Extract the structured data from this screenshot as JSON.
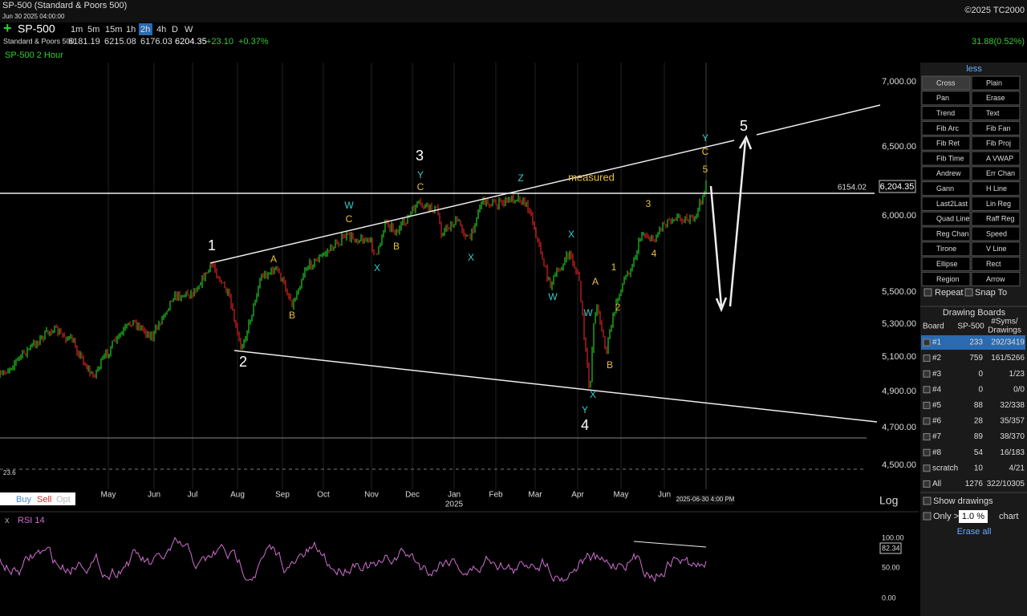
{
  "header": {
    "title": "SP-500 (Standard & Poors 500)",
    "date": "Jun 30 2025 04:00:00",
    "copyright": "©2025 TC2000"
  },
  "toolbar": {
    "symbol": "SP-500",
    "timeframes": [
      "1m",
      "5m",
      "15m",
      "1h",
      "2h",
      "4h",
      "D",
      "W"
    ],
    "name": "Standard & Poors 500",
    "open": "6181.19",
    "high": "6215.08",
    "low": "6176.03",
    "last": "6204.35",
    "change": "+23.10",
    "change_pct": "+0.37%",
    "day_change": "31.88(0.52%)"
  },
  "chart": {
    "label": "SP-500 2 Hour",
    "price_axis": [
      "7,000.00",
      "6,500.00",
      "6,000.00",
      "5,500.00",
      "5,300.00",
      "5,100.00",
      "4,900.00",
      "4,700.00",
      "4,500.00"
    ],
    "last_label": "6,204.35",
    "ref_line": "6154.02",
    "months": [
      "May",
      "Jun",
      "Jul",
      "Aug",
      "Sep",
      "Oct",
      "Nov",
      "Dec",
      "Jan",
      "Feb",
      "Mar",
      "Apr",
      "May",
      "Jun"
    ],
    "year": "2025",
    "time_label": "2025-06-30 4:00 PM",
    "fib": "23.6",
    "trade": [
      "Buy",
      "Sell",
      "Opt"
    ],
    "scale": "Log",
    "waves": [
      "1",
      "2",
      "3",
      "4",
      "5",
      "A",
      "B",
      "C",
      "B",
      "C",
      "measured",
      "3",
      "4",
      "1",
      "2",
      "A",
      "B",
      "5",
      "C",
      "W",
      "X",
      "Y",
      "X",
      "Z",
      "W",
      "X",
      "W",
      "X",
      "Y",
      "Y"
    ]
  },
  "rsi": {
    "close": "x",
    "label": "RSI 14",
    "axis": [
      "100.00",
      "82.34",
      "50.00",
      "0.00"
    ]
  },
  "panel": {
    "less": "less",
    "tools": [
      [
        "Cross",
        "Plain"
      ],
      [
        "Pan",
        "Erase"
      ],
      [
        "Trend",
        "Text"
      ],
      [
        "Fib Arc",
        "Fib Fan"
      ],
      [
        "Fib Ret",
        "Fib Proj"
      ],
      [
        "Fib Time",
        "A VWAP"
      ],
      [
        "Andrew",
        "Err Chan"
      ],
      [
        "Gann",
        "H Line"
      ],
      [
        "Last2Last",
        "Lin Reg"
      ],
      [
        "Quad Line",
        "Raff Reg"
      ],
      [
        "Reg Chan",
        "Speed"
      ],
      [
        "Tirone",
        "V Line"
      ],
      [
        "Ellipse",
        "Rect"
      ],
      [
        "Region",
        "Arrow"
      ]
    ],
    "repeat": "Repeat",
    "snap": "Snap To",
    "boards_title": "Drawing Boards",
    "boards_head": [
      "Board",
      "SP-500",
      "#Syms/",
      "Drawings"
    ],
    "boards": [
      [
        "#1",
        "233",
        "292/3419"
      ],
      [
        "#2",
        "759",
        "161/5266"
      ],
      [
        "#3",
        "0",
        "1/23"
      ],
      [
        "#4",
        "0",
        "0/0"
      ],
      [
        "#5",
        "88",
        "32/338"
      ],
      [
        "#6",
        "28",
        "35/357"
      ],
      [
        "#7",
        "89",
        "38/370"
      ],
      [
        "#8",
        "54",
        "16/183"
      ],
      [
        "scratch",
        "10",
        "4/21"
      ],
      [
        "All",
        "1276",
        "322/10305"
      ]
    ],
    "show": "Show drawings",
    "only": "Only >",
    "pct": "1.0 %",
    "chart_word": "chart",
    "erase": "Erase all"
  }
}
